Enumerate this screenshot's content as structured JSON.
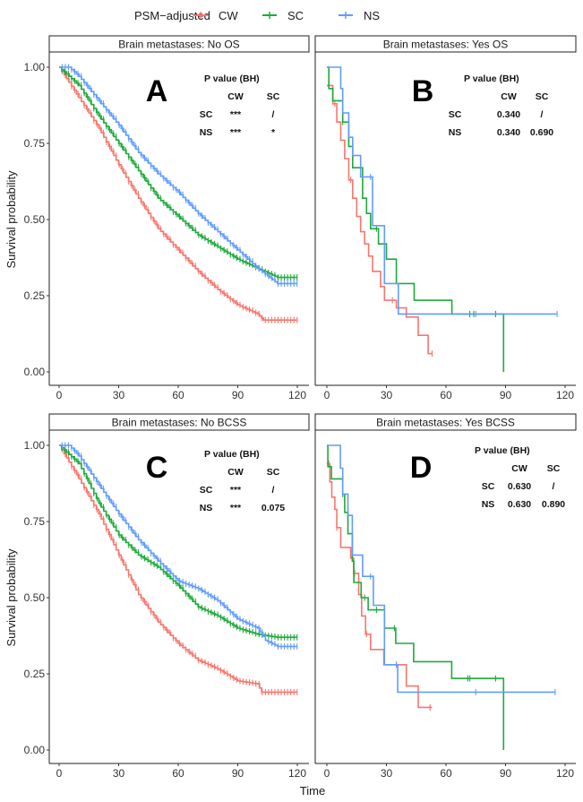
{
  "legend": {
    "title": "PSM−adjusted",
    "entries": [
      "CW",
      "SC",
      "NS"
    ]
  },
  "colors": {
    "CW": "#F8766D",
    "SC": "#1DAA3A",
    "NS": "#619CFF"
  },
  "chart_data": [
    {
      "type": "line",
      "strip": "Brain metastases: No  OS",
      "letter": "A",
      "xlabel": "Time",
      "ylabel": "Survival probability",
      "xlim": [
        0,
        120
      ],
      "ylim": [
        0,
        1
      ],
      "xticks": [
        "0",
        "30",
        "60",
        "90",
        "120"
      ],
      "yticks": [
        "0.00",
        "0.25",
        "0.50",
        "0.75",
        "1.00"
      ],
      "pvalue": {
        "title": "P value (BH)",
        "cols": [
          "CW",
          "SC"
        ],
        "rows": [
          [
            "SC",
            "***",
            "/"
          ],
          [
            "NS",
            "***",
            "*"
          ]
        ]
      },
      "series": [
        {
          "name": "CW",
          "points": [
            [
              0,
              1
            ],
            [
              10,
              0.9
            ],
            [
              20,
              0.8
            ],
            [
              30,
              0.68
            ],
            [
              40,
              0.57
            ],
            [
              50,
              0.47
            ],
            [
              60,
              0.4
            ],
            [
              70,
              0.33
            ],
            [
              80,
              0.27
            ],
            [
              90,
              0.22
            ],
            [
              100,
              0.19
            ],
            [
              103,
              0.17
            ],
            [
              120,
              0.17
            ]
          ],
          "dense": true
        },
        {
          "name": "SC",
          "points": [
            [
              0,
              1
            ],
            [
              10,
              0.94
            ],
            [
              20,
              0.84
            ],
            [
              30,
              0.75
            ],
            [
              40,
              0.66
            ],
            [
              50,
              0.57
            ],
            [
              60,
              0.51
            ],
            [
              70,
              0.45
            ],
            [
              80,
              0.41
            ],
            [
              90,
              0.37
            ],
            [
              100,
              0.34
            ],
            [
              110,
              0.31
            ],
            [
              120,
              0.31
            ]
          ],
          "dense": true
        },
        {
          "name": "NS",
          "points": [
            [
              0,
              1
            ],
            [
              5,
              1
            ],
            [
              10,
              0.97
            ],
            [
              20,
              0.89
            ],
            [
              30,
              0.81
            ],
            [
              40,
              0.72
            ],
            [
              50,
              0.65
            ],
            [
              60,
              0.59
            ],
            [
              70,
              0.52
            ],
            [
              80,
              0.46
            ],
            [
              90,
              0.4
            ],
            [
              100,
              0.34
            ],
            [
              110,
              0.29
            ],
            [
              120,
              0.29
            ]
          ],
          "dense": true
        }
      ]
    },
    {
      "type": "line",
      "strip": "Brain metastases: Yes  OS",
      "letter": "B",
      "xlim": [
        0,
        120
      ],
      "ylim": [
        0,
        1
      ],
      "xticks": [
        "0",
        "30",
        "60",
        "90",
        "120"
      ],
      "pvalue": {
        "title": "P value (BH)",
        "cols": [
          "CW",
          "SC"
        ],
        "rows": [
          [
            "SC",
            "0.340",
            "/"
          ],
          [
            "NS",
            "0.340",
            "0.690"
          ]
        ]
      },
      "series": [
        {
          "name": "CW",
          "points": [
            [
              0,
              0.94
            ],
            [
              3,
              0.88
            ],
            [
              5,
              0.82
            ],
            [
              7,
              0.76
            ],
            [
              9,
              0.7
            ],
            [
              11,
              0.63
            ],
            [
              13,
              0.57
            ],
            [
              15,
              0.51
            ],
            [
              17,
              0.46
            ],
            [
              19,
              0.42
            ],
            [
              21,
              0.38
            ],
            [
              23,
              0.33
            ],
            [
              27,
              0.28
            ],
            [
              29,
              0.235
            ],
            [
              35,
              0.21
            ],
            [
              40,
              0.18
            ],
            [
              46,
              0.12
            ],
            [
              51,
              0.06
            ],
            [
              53,
              0.06
            ]
          ],
          "censored": [
            4,
            12,
            33,
            53
          ]
        },
        {
          "name": "SC",
          "points": [
            [
              0,
              1
            ],
            [
              1,
              0.93
            ],
            [
              3,
              0.89
            ],
            [
              8,
              0.82
            ],
            [
              11,
              0.74
            ],
            [
              13,
              0.67
            ],
            [
              18,
              0.57
            ],
            [
              20,
              0.52
            ],
            [
              22,
              0.47
            ],
            [
              26,
              0.42
            ],
            [
              30,
              0.37
            ],
            [
              35,
              0.29
            ],
            [
              44,
              0.235
            ],
            [
              63,
              0.19
            ],
            [
              89,
              0.19
            ],
            [
              89,
              0
            ]
          ],
          "censored": [
            8,
            25,
            72,
            74,
            85
          ]
        },
        {
          "name": "NS",
          "points": [
            [
              0,
              1
            ],
            [
              7,
              0.93
            ],
            [
              8,
              0.85
            ],
            [
              11,
              0.77
            ],
            [
              13,
              0.71
            ],
            [
              17,
              0.64
            ],
            [
              23,
              0.48
            ],
            [
              29,
              0.29
            ],
            [
              36,
              0.19
            ],
            [
              116,
              0.19
            ]
          ],
          "censored": [
            22,
            75,
            116
          ]
        }
      ]
    },
    {
      "type": "line",
      "strip": "Brain metastases: No  BCSS",
      "letter": "C",
      "xlabel": "Time",
      "ylabel": "Survival probability",
      "xlim": [
        0,
        120
      ],
      "ylim": [
        0,
        1
      ],
      "xticks": [
        "0",
        "30",
        "60",
        "90",
        "120"
      ],
      "yticks": [
        "0.00",
        "0.25",
        "0.50",
        "0.75",
        "1.00"
      ],
      "pvalue": {
        "title": "P value (BH)",
        "cols": [
          "CW",
          "SC"
        ],
        "rows": [
          [
            "SC",
            "***",
            "/"
          ],
          [
            "NS",
            "***",
            "0.075"
          ]
        ]
      },
      "series": [
        {
          "name": "CW",
          "points": [
            [
              0,
              1
            ],
            [
              10,
              0.89
            ],
            [
              20,
              0.775
            ],
            [
              30,
              0.64
            ],
            [
              40,
              0.51
            ],
            [
              50,
              0.42
            ],
            [
              60,
              0.35
            ],
            [
              70,
              0.295
            ],
            [
              80,
              0.266
            ],
            [
              90,
              0.227
            ],
            [
              100,
              0.217
            ],
            [
              102,
              0.19
            ],
            [
              120,
              0.19
            ]
          ],
          "dense": true
        },
        {
          "name": "SC",
          "points": [
            [
              0,
              1
            ],
            [
              10,
              0.94
            ],
            [
              20,
              0.81
            ],
            [
              30,
              0.706
            ],
            [
              40,
              0.64
            ],
            [
              50,
              0.6
            ],
            [
              60,
              0.54
            ],
            [
              70,
              0.47
            ],
            [
              80,
              0.44
            ],
            [
              90,
              0.4
            ],
            [
              100,
              0.38
            ],
            [
              110,
              0.37
            ],
            [
              120,
              0.37
            ]
          ],
          "dense": true
        },
        {
          "name": "NS",
          "points": [
            [
              0,
              1
            ],
            [
              5,
              1
            ],
            [
              10,
              0.965
            ],
            [
              20,
              0.87
            ],
            [
              30,
              0.775
            ],
            [
              40,
              0.69
            ],
            [
              50,
              0.62
            ],
            [
              60,
              0.555
            ],
            [
              70,
              0.53
            ],
            [
              80,
              0.49
            ],
            [
              90,
              0.43
            ],
            [
              100,
              0.4
            ],
            [
              104,
              0.36
            ],
            [
              110,
              0.34
            ],
            [
              120,
              0.34
            ]
          ],
          "dense": true
        }
      ]
    },
    {
      "type": "line",
      "strip": "Brain metastases: Yes  BCSS",
      "letter": "D",
      "xlim": [
        0,
        120
      ],
      "ylim": [
        0,
        1
      ],
      "xticks": [
        "0",
        "30",
        "60",
        "90",
        "120"
      ],
      "pvalue": {
        "title": "P value (BH)",
        "cols": [
          "CW",
          "SC"
        ],
        "rows": [
          [
            "SC",
            "0.630",
            "/"
          ],
          [
            "NS",
            "0.630",
            "0.890"
          ]
        ]
      },
      "series": [
        {
          "name": "CW",
          "points": [
            [
              0,
              0.94
            ],
            [
              1.5,
              0.88
            ],
            [
              2.5,
              0.83
            ],
            [
              4,
              0.79
            ],
            [
              5,
              0.73
            ],
            [
              7,
              0.665
            ],
            [
              12,
              0.63
            ],
            [
              13.5,
              0.58
            ],
            [
              16,
              0.51
            ],
            [
              17.5,
              0.44
            ],
            [
              19.5,
              0.38
            ],
            [
              22,
              0.33
            ],
            [
              28.7,
              0.28
            ],
            [
              40,
              0.21
            ],
            [
              46,
              0.14
            ],
            [
              53,
              0.14
            ]
          ],
          "censored": [
            1,
            5,
            14,
            20,
            35,
            52
          ]
        },
        {
          "name": "SC",
          "points": [
            [
              0,
              1
            ],
            [
              0.5,
              0.93
            ],
            [
              2.3,
              0.89
            ],
            [
              8,
              0.84
            ],
            [
              9,
              0.78
            ],
            [
              10.6,
              0.71
            ],
            [
              12.8,
              0.62
            ],
            [
              13.6,
              0.55
            ],
            [
              17.3,
              0.5
            ],
            [
              20.8,
              0.46
            ],
            [
              29,
              0.4
            ],
            [
              34.7,
              0.35
            ],
            [
              43.7,
              0.29
            ],
            [
              62.9,
              0.235
            ],
            [
              89,
              0.235
            ],
            [
              89,
              0
            ]
          ],
          "censored": [
            8,
            19,
            25,
            34,
            71,
            72,
            85
          ]
        },
        {
          "name": "NS",
          "points": [
            [
              0,
              1
            ],
            [
              6.8,
              0.925
            ],
            [
              8,
              0.84
            ],
            [
              10.6,
              0.77
            ],
            [
              12.8,
              0.64
            ],
            [
              18,
              0.57
            ],
            [
              23.4,
              0.475
            ],
            [
              29,
              0.28
            ],
            [
              35.7,
              0.19
            ],
            [
              115,
              0.19
            ]
          ],
          "censored": [
            22,
            35,
            75,
            115
          ]
        }
      ]
    }
  ]
}
